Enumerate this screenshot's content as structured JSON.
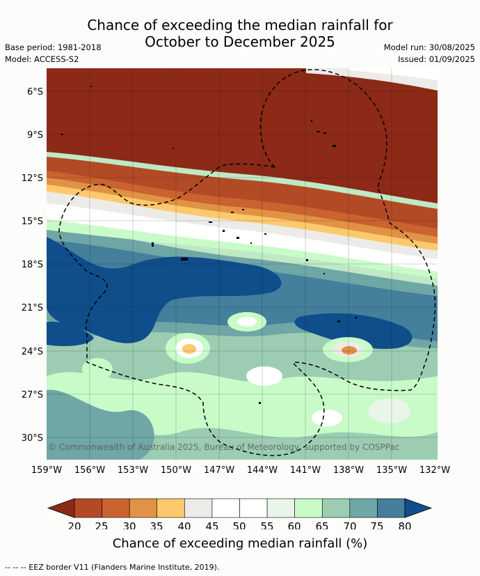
{
  "title": {
    "line1": "Chance of exceeding the median rainfall for",
    "line2": "October to December 2025"
  },
  "info": {
    "base_period": "Base period: 1981-2018",
    "model": "Model: ACCESS-S2",
    "model_run": "Model run: 30/08/2025",
    "issued": "Issued: 01/09/2025"
  },
  "map": {
    "lat_labels": [
      "6°S",
      "9°S",
      "12°S",
      "15°S",
      "18°S",
      "21°S",
      "24°S",
      "27°S",
      "30°S"
    ],
    "lon_labels": [
      "159°W",
      "156°W",
      "153°W",
      "150°W",
      "147°W",
      "144°W",
      "141°W",
      "138°W",
      "135°W",
      "132°W"
    ],
    "copyright": "© Commonwealth of Australia 2025, Bureau of Meteorology, supported by COSPPac"
  },
  "colorbar": {
    "ticks": [
      "20",
      "25",
      "30",
      "35",
      "40",
      "45",
      "50",
      "55",
      "60",
      "65",
      "70",
      "75",
      "80"
    ],
    "colors": [
      "#8c2a17",
      "#b34a26",
      "#c9632f",
      "#e19244",
      "#fcc96c",
      "#ecebe7",
      "#ffffff",
      "#ffffff",
      "#e9f5e9",
      "#c9fbc9",
      "#9ccdb2",
      "#6fa6a6",
      "#447f9c",
      "#0f4e8a"
    ],
    "label": "Chance of exceeding median rainfall (%)"
  },
  "footer": "--  --  -- EEZ border V11 (Flanders Marine Institute, 2019)."
}
